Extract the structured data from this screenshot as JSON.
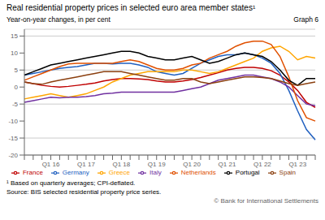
{
  "chart_data": {
    "type": "line",
    "title": "Real residential property prices in selected euro area member states¹",
    "subtitle": "Year-on-year changes, in per cent",
    "annotations": [
      "Graph 6",
      "¹  Based on quarterly averages; CPI-deflated.",
      "Source: BIS selected residential property price series.",
      "© Bank for International Settlements"
    ],
    "categories": [
      null,
      null,
      null,
      "Q1 16",
      null,
      null,
      null,
      "Q1 17",
      null,
      null,
      null,
      "Q1 18",
      null,
      null,
      null,
      "Q1 19",
      null,
      null,
      null,
      "Q1 20",
      null,
      null,
      null,
      "Q1 21",
      null,
      null,
      null,
      "Q1 22",
      null,
      null,
      null,
      "Q1 23",
      null,
      null
    ],
    "ylim": [
      -20,
      17
    ],
    "yticks": [
      -20,
      -15,
      -10,
      -5,
      0,
      5,
      10,
      15
    ],
    "grid": true,
    "legend": "bottom",
    "series": [
      {
        "name": "France",
        "color": "#c00000",
        "values": [
          1.5,
          1.0,
          0.5,
          0.2,
          0.0,
          0.2,
          0.5,
          0.8,
          1.2,
          1.8,
          2.2,
          2.5,
          2.5,
          2.4,
          2.2,
          1.8,
          1.5,
          1.5,
          1.8,
          2.2,
          2.8,
          3.5,
          4.2,
          5.0,
          5.5,
          5.8,
          5.8,
          5.5,
          4.8,
          3.5,
          1.5,
          -1.0,
          -4.5,
          -6.0
        ]
      },
      {
        "name": "Germany",
        "color": "#2060c0",
        "values": [
          3.5,
          4.0,
          4.5,
          5.0,
          5.5,
          5.8,
          6.0,
          6.5,
          7.0,
          7.0,
          6.8,
          7.0,
          7.0,
          6.5,
          5.8,
          4.5,
          4.0,
          3.5,
          4.0,
          5.5,
          7.0,
          8.0,
          9.0,
          9.5,
          9.5,
          10.0,
          9.5,
          8.5,
          7.0,
          4.0,
          -1.0,
          -7.0,
          -12.5,
          -15.5
        ]
      },
      {
        "name": "Greece",
        "color": "#ffa500",
        "values": [
          -3.5,
          -3.0,
          -2.5,
          -2.0,
          -2.5,
          -3.0,
          -2.5,
          -2.0,
          -1.0,
          0.0,
          1.5,
          2.5,
          3.5,
          4.0,
          4.5,
          4.5,
          4.5,
          4.5,
          5.0,
          5.0,
          4.5,
          4.0,
          4.5,
          5.5,
          6.5,
          7.5,
          8.5,
          10.5,
          11.5,
          12.0,
          10.5,
          8.0,
          9.0,
          8.5
        ]
      },
      {
        "name": "Italy",
        "color": "#7030a0",
        "values": [
          -4.5,
          -4.0,
          -3.5,
          -3.0,
          -3.2,
          -3.0,
          -3.0,
          -2.8,
          -2.5,
          -2.0,
          -1.8,
          -1.5,
          -1.5,
          -1.5,
          -1.5,
          -1.5,
          -1.5,
          -1.5,
          -1.0,
          -0.5,
          0.0,
          1.0,
          2.0,
          2.5,
          3.0,
          3.5,
          3.5,
          3.0,
          2.5,
          1.5,
          0.0,
          -2.5,
          -5.0,
          -5.5
        ]
      },
      {
        "name": "Netherlands",
        "color": "#e05000",
        "values": [
          2.0,
          3.0,
          4.0,
          5.0,
          6.0,
          6.8,
          7.0,
          7.0,
          7.0,
          7.0,
          7.0,
          7.5,
          8.0,
          7.5,
          6.5,
          5.5,
          5.0,
          5.0,
          5.5,
          6.5,
          7.0,
          8.5,
          9.5,
          10.5,
          12.0,
          13.0,
          13.5,
          13.5,
          12.5,
          9.0,
          3.0,
          -4.0,
          -9.0,
          -10.0
        ]
      },
      {
        "name": "Portugal",
        "color": "#000000",
        "values": [
          3.5,
          4.5,
          5.5,
          6.5,
          7.0,
          7.5,
          8.0,
          8.5,
          9.0,
          9.5,
          10.0,
          10.5,
          10.5,
          10.0,
          9.0,
          8.5,
          8.0,
          8.0,
          8.5,
          9.0,
          8.0,
          7.0,
          7.5,
          8.5,
          9.5,
          10.0,
          9.5,
          9.0,
          7.5,
          5.0,
          2.0,
          0.5,
          2.5,
          2.5
        ]
      },
      {
        "name": "Spain",
        "color": "#8b4010",
        "values": [
          1.5,
          1.0,
          0.8,
          1.5,
          2.0,
          2.5,
          3.0,
          3.5,
          4.0,
          4.5,
          4.5,
          4.5,
          4.0,
          3.5,
          3.0,
          2.5,
          2.0,
          2.0,
          2.5,
          2.5,
          1.5,
          1.0,
          1.5,
          2.0,
          2.5,
          3.0,
          3.0,
          2.8,
          2.5,
          1.8,
          1.0,
          0.5,
          1.0,
          1.5
        ]
      }
    ]
  }
}
